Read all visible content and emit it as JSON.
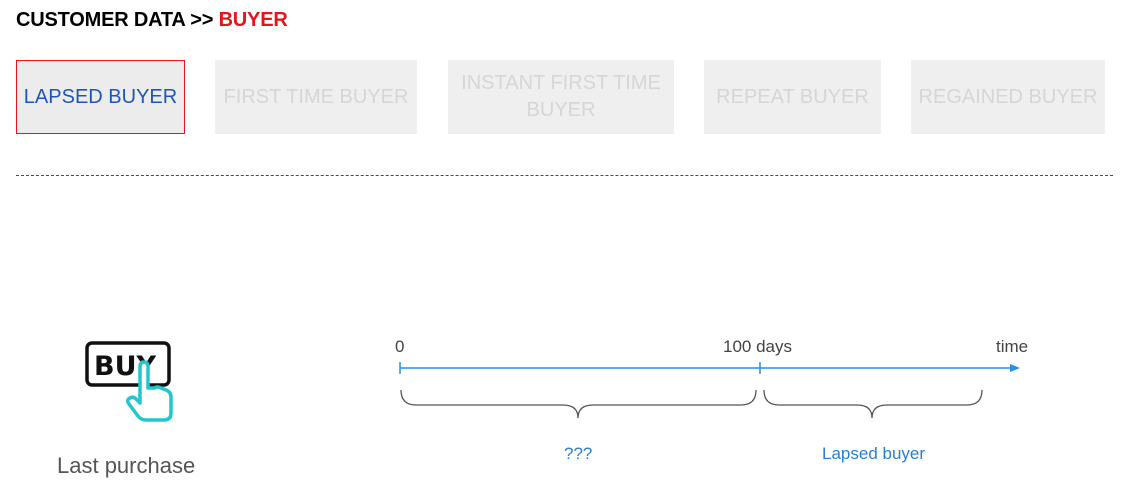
{
  "breadcrumb": {
    "prefix": "CUSTOMER DATA >>",
    "current": "BUYER"
  },
  "tabs": [
    {
      "label": "LAPSED BUYER",
      "active": true
    },
    {
      "label": "FIRST TIME BUYER",
      "active": false
    },
    {
      "label_line1": "INSTANT FIRST TIME",
      "label_line2": "BUYER",
      "active": false
    },
    {
      "label": "REPEAT BUYER",
      "active": false
    },
    {
      "label": "REGAINED BUYER",
      "active": false
    }
  ],
  "diagram": {
    "icon_text": "BUY",
    "caption": "Last purchase",
    "ticks": {
      "start": "0",
      "mid": "100 days",
      "end": "time"
    },
    "braces": {
      "first": "???",
      "second": "Lapsed buyer"
    },
    "colors": {
      "axis": "#2a8fe0",
      "brace": "#555555",
      "label": "#2a7fd0",
      "icon_hand": "#22c6cf"
    }
  }
}
